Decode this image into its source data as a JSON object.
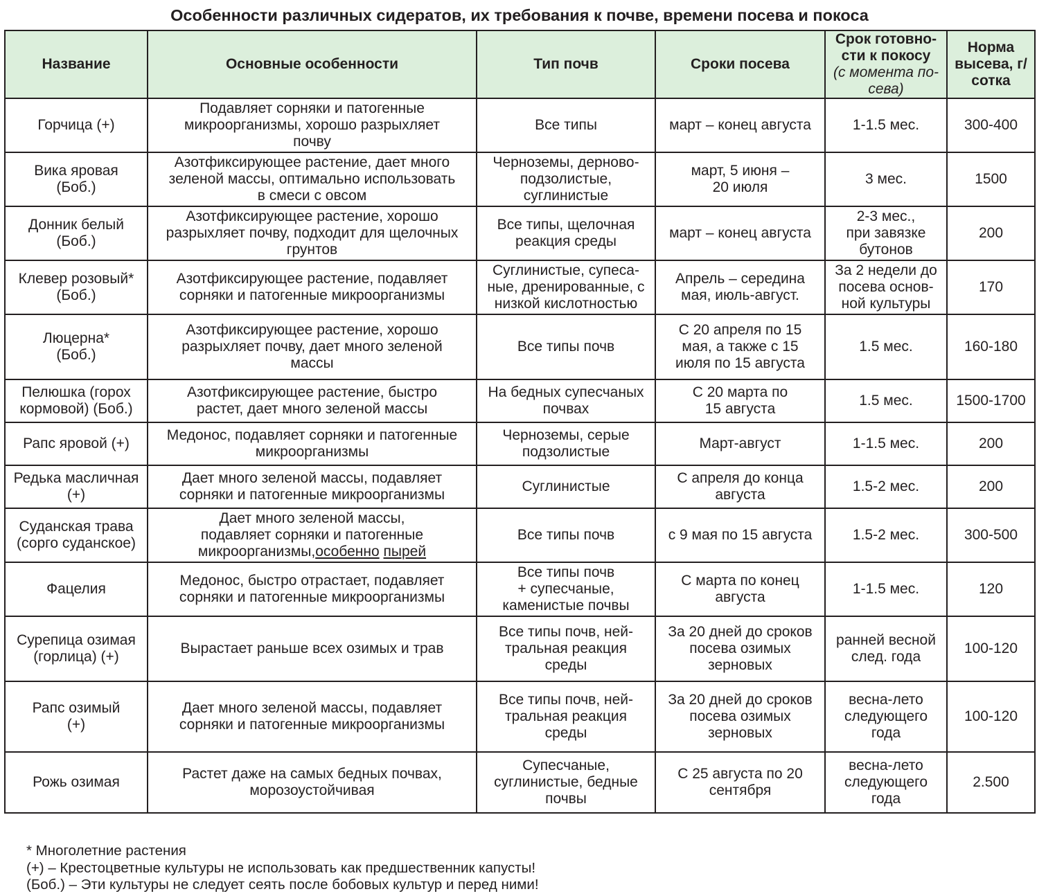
{
  "title": "Особенности различных сидератов, их требования к почве, времени посева и покоса",
  "headers": {
    "name": "Название",
    "features": "Основные особенности",
    "soil": "Тип почв",
    "sowing": "Сроки посева",
    "ready": "Срок готовно-\nсти к покосу",
    "ready_note": "(с момента по-\nсева)",
    "rate": "Норма\nвысева, г/\nсотка"
  },
  "rows": [
    {
      "name": "Горчица (+)",
      "features": "Подавляет сорняки и патогенные\nмикроорганизмы, хорошо разрыхляет\nпочву",
      "soil": "Все типы",
      "sowing": "март – конец августа",
      "ready": "1-1.5 мес.",
      "rate": "300-400"
    },
    {
      "name": "Вика яровая\n(Боб.)",
      "features": "Азотфиксирующее растение, дает много\nзеленой массы, оптимально использовать\nв смеси с овсом",
      "soil": "Черноземы, дерново-\nподзолистые,\nсуглинистые",
      "sowing": "март, 5 июня –\n20 июля",
      "ready": "3 мес.",
      "rate": "1500"
    },
    {
      "name": "Донник белый\n(Боб.)",
      "features": "Азотфиксирующее растение, хорошо\nразрыхляет почву, подходит для щелочных\nгрунтов",
      "soil": "Все типы, щелочная\nреакция среды",
      "sowing": "март – конец  августа",
      "ready": "2-3 мес.,\nпри завязке\nбутонов",
      "rate": "200"
    },
    {
      "name": "Клевер розовый*\n(Боб.)",
      "features": "Азотфиксирующее растение, подавляет\nсорняки и патогенные микроорганизмы",
      "soil": "Суглинистые, супеса-\nные, дренированные, с\nнизкой кислотностью",
      "sowing": "Апрель – середина\nмая, июль-август.",
      "ready": "За  2 недели до\nпосева основ-\nной культуры",
      "rate": "170"
    },
    {
      "name": "Люцерна*\n(Боб.)",
      "features": "Азотфиксирующее растение, хорошо\nразрыхляет почву, дает много зеленой\nмассы",
      "soil": "Все типы почв",
      "sowing": "С 20 апреля по 15\nмая, а также с 15\nиюля по 15 августа",
      "ready": "1.5 мес.",
      "rate": "160-180"
    },
    {
      "name": "Пелюшка (горох\nкормовой)  (Боб.)",
      "features": "Азотфиксирующее растение, быстро\nрастет, дает много зеленой массы",
      "soil": "На бедных супесчаных\nпочвах",
      "sowing": "С 20 марта по\n15 августа",
      "ready": "1.5 мес.",
      "rate": "1500-1700"
    },
    {
      "name": "Рапс яровой (+)",
      "features": "Медонос, подавляет сорняки и патогенные\nмикроорганизмы",
      "soil": "Черноземы, серые\nподзолистые",
      "sowing": "Март-август",
      "ready": "1-1.5 мес.",
      "rate": "200"
    },
    {
      "name": "Редька масличная\n(+)",
      "features": "Дает много зеленой массы, подавляет\nсорняки и патогенные микроорганизмы",
      "soil": "Суглинистые",
      "sowing": "С апреля до конца\nавгуста",
      "ready": "1.5-2 мес.",
      "rate": "200"
    },
    {
      "name": "Суданская трава\n(сорго суданское)",
      "features": "Дает много зеленой массы,\nподавляет сорняки и патогенные\nмикроорганизмы,",
      "features_underlined": [
        "особенно",
        "пырей"
      ],
      "soil": "Все типы почв",
      "sowing": "с 9 мая по 15 августа",
      "ready": "1.5-2 мес.",
      "rate": "300-500"
    },
    {
      "name": "Фацелия",
      "features": "Медонос, быстро отрастает,  подавляет\nсорняки и патогенные микроорганизмы",
      "soil": "Все типы почв\n+ супесчаные,\nкаменистые почвы",
      "sowing": "С марта по конец\nавгуста",
      "ready": "1-1.5 мес.",
      "rate": "120"
    },
    {
      "name": "Сурепица озимая\n(горлица) (+)",
      "features": "Вырастает раньше всех озимых и трав",
      "soil": "Все типы почв, ней-\nтральная реакция\nсреды",
      "sowing": "За 20 дней до сроков\nпосева озимых\nзерновых",
      "ready": "ранней весной\nслед. года",
      "rate": "100-120"
    },
    {
      "name": "Рапс озимый\n(+)",
      "features": "Дает много зеленой массы, подавляет\nсорняки и патогенные микроорганизмы",
      "soil": "Все типы почв, ней-\nтральная реакция\nсреды",
      "sowing": "За 20 дней до сроков\nпосева озимых\nзерновых",
      "ready": "весна-лето\nследующего\nгода",
      "rate": "100-120"
    },
    {
      "name": "Рожь озимая",
      "features": "Растет даже на самых бедных почвах,\nморозоустойчивая",
      "soil": "Супесчаные,\nсуглинистые, бедные\nпочвы",
      "sowing": "С 25 августа по 20\nсентября",
      "ready": "весна-лето\nследующего\nгода",
      "rate": "2.500"
    }
  ],
  "notes": [
    "* Многолетние растения",
    "(+) – Крестоцветные культуры не использовать как предшественник капусты!",
    "(Боб.) – Эти культуры не следует сеять после бобовых культур и перед ними!"
  ],
  "colors": {
    "header_bg": "#dcefdc",
    "border": "#231f20"
  }
}
